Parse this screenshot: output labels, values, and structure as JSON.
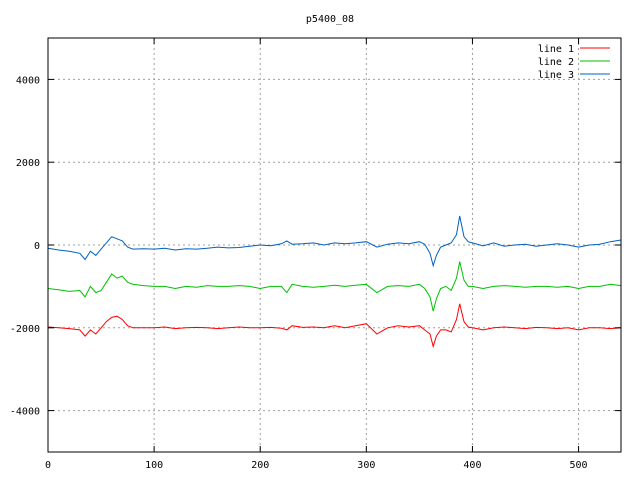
{
  "chart_data": {
    "type": "line",
    "title": "p5400_08",
    "xlabel": "",
    "ylabel": "",
    "xlim": [
      0,
      540
    ],
    "ylim": [
      -5000,
      5000
    ],
    "xticks": [
      0,
      100,
      200,
      300,
      400,
      500
    ],
    "yticks": [
      -4000,
      -2000,
      0,
      2000,
      4000
    ],
    "grid": true,
    "legend_position": "top-right",
    "series": [
      {
        "name": "line 1",
        "color": "#ff0000",
        "x": [
          0,
          10,
          20,
          30,
          35,
          40,
          45,
          50,
          55,
          60,
          65,
          70,
          75,
          80,
          90,
          100,
          110,
          120,
          130,
          140,
          150,
          160,
          170,
          180,
          190,
          200,
          210,
          220,
          225,
          230,
          240,
          250,
          260,
          270,
          280,
          290,
          300,
          310,
          320,
          330,
          340,
          350,
          355,
          360,
          363,
          366,
          370,
          375,
          380,
          385,
          388,
          392,
          396,
          400,
          410,
          420,
          430,
          440,
          450,
          460,
          470,
          480,
          490,
          500,
          510,
          520,
          530,
          540
        ],
        "y": [
          -1980,
          -2000,
          -2020,
          -2050,
          -2200,
          -2050,
          -2150,
          -2000,
          -1850,
          -1750,
          -1720,
          -1800,
          -1950,
          -2000,
          -2000,
          -2000,
          -1980,
          -2020,
          -2000,
          -1990,
          -2000,
          -2020,
          -2000,
          -1980,
          -2000,
          -2000,
          -1990,
          -2010,
          -2050,
          -1950,
          -1990,
          -1980,
          -2000,
          -1950,
          -2000,
          -1950,
          -1900,
          -2150,
          -2000,
          -1950,
          -1980,
          -1950,
          -2050,
          -2150,
          -2450,
          -2200,
          -2050,
          -2050,
          -2100,
          -1800,
          -1420,
          -1850,
          -1980,
          -2000,
          -2050,
          -2000,
          -1980,
          -2000,
          -2020,
          -1990,
          -2000,
          -2020,
          -2000,
          -2050,
          -2000,
          -2000,
          -2020,
          -2000
        ]
      },
      {
        "name": "line 2",
        "color": "#00c000",
        "x": [
          0,
          10,
          20,
          30,
          35,
          40,
          45,
          50,
          55,
          60,
          65,
          70,
          75,
          80,
          90,
          100,
          110,
          120,
          130,
          140,
          150,
          160,
          170,
          180,
          190,
          200,
          210,
          220,
          225,
          230,
          240,
          250,
          260,
          270,
          280,
          290,
          300,
          310,
          320,
          330,
          340,
          350,
          355,
          360,
          363,
          366,
          370,
          375,
          380,
          385,
          388,
          392,
          396,
          400,
          410,
          420,
          430,
          440,
          450,
          460,
          470,
          480,
          490,
          500,
          510,
          520,
          530,
          540
        ],
        "y": [
          -1050,
          -1080,
          -1120,
          -1100,
          -1250,
          -1000,
          -1150,
          -1100,
          -900,
          -700,
          -800,
          -750,
          -900,
          -950,
          -980,
          -1000,
          -1000,
          -1050,
          -1000,
          -1020,
          -980,
          -1000,
          -1000,
          -980,
          -1000,
          -1050,
          -1000,
          -1000,
          -1150,
          -950,
          -1000,
          -1020,
          -1000,
          -970,
          -1000,
          -970,
          -950,
          -1150,
          -1000,
          -980,
          -1000,
          -950,
          -1050,
          -1250,
          -1600,
          -1300,
          -1050,
          -1000,
          -1100,
          -800,
          -400,
          -850,
          -1000,
          -1000,
          -1050,
          -1000,
          -980,
          -1000,
          -1020,
          -1000,
          -1000,
          -1020,
          -1000,
          -1050,
          -1000,
          -1000,
          -950,
          -980
        ]
      },
      {
        "name": "line 3",
        "color": "#0060c0",
        "x": [
          0,
          10,
          20,
          30,
          35,
          40,
          45,
          50,
          55,
          60,
          65,
          70,
          75,
          80,
          90,
          100,
          110,
          120,
          130,
          140,
          150,
          160,
          170,
          180,
          190,
          200,
          210,
          220,
          225,
          230,
          240,
          250,
          260,
          270,
          280,
          290,
          300,
          310,
          320,
          330,
          340,
          350,
          355,
          360,
          363,
          366,
          370,
          375,
          380,
          385,
          388,
          392,
          396,
          400,
          410,
          420,
          430,
          440,
          450,
          460,
          470,
          480,
          490,
          500,
          510,
          520,
          530,
          540
        ],
        "y": [
          -80,
          -120,
          -150,
          -200,
          -350,
          -150,
          -250,
          -100,
          50,
          200,
          150,
          100,
          -50,
          -100,
          -90,
          -100,
          -80,
          -120,
          -90,
          -100,
          -80,
          -50,
          -70,
          -60,
          -30,
          0,
          -20,
          30,
          100,
          20,
          30,
          50,
          0,
          50,
          30,
          50,
          80,
          -50,
          20,
          50,
          30,
          80,
          20,
          -200,
          -500,
          -250,
          -50,
          0,
          50,
          250,
          700,
          200,
          80,
          50,
          -20,
          50,
          -30,
          0,
          20,
          -30,
          0,
          30,
          0,
          -50,
          0,
          20,
          80,
          120
        ]
      }
    ]
  }
}
